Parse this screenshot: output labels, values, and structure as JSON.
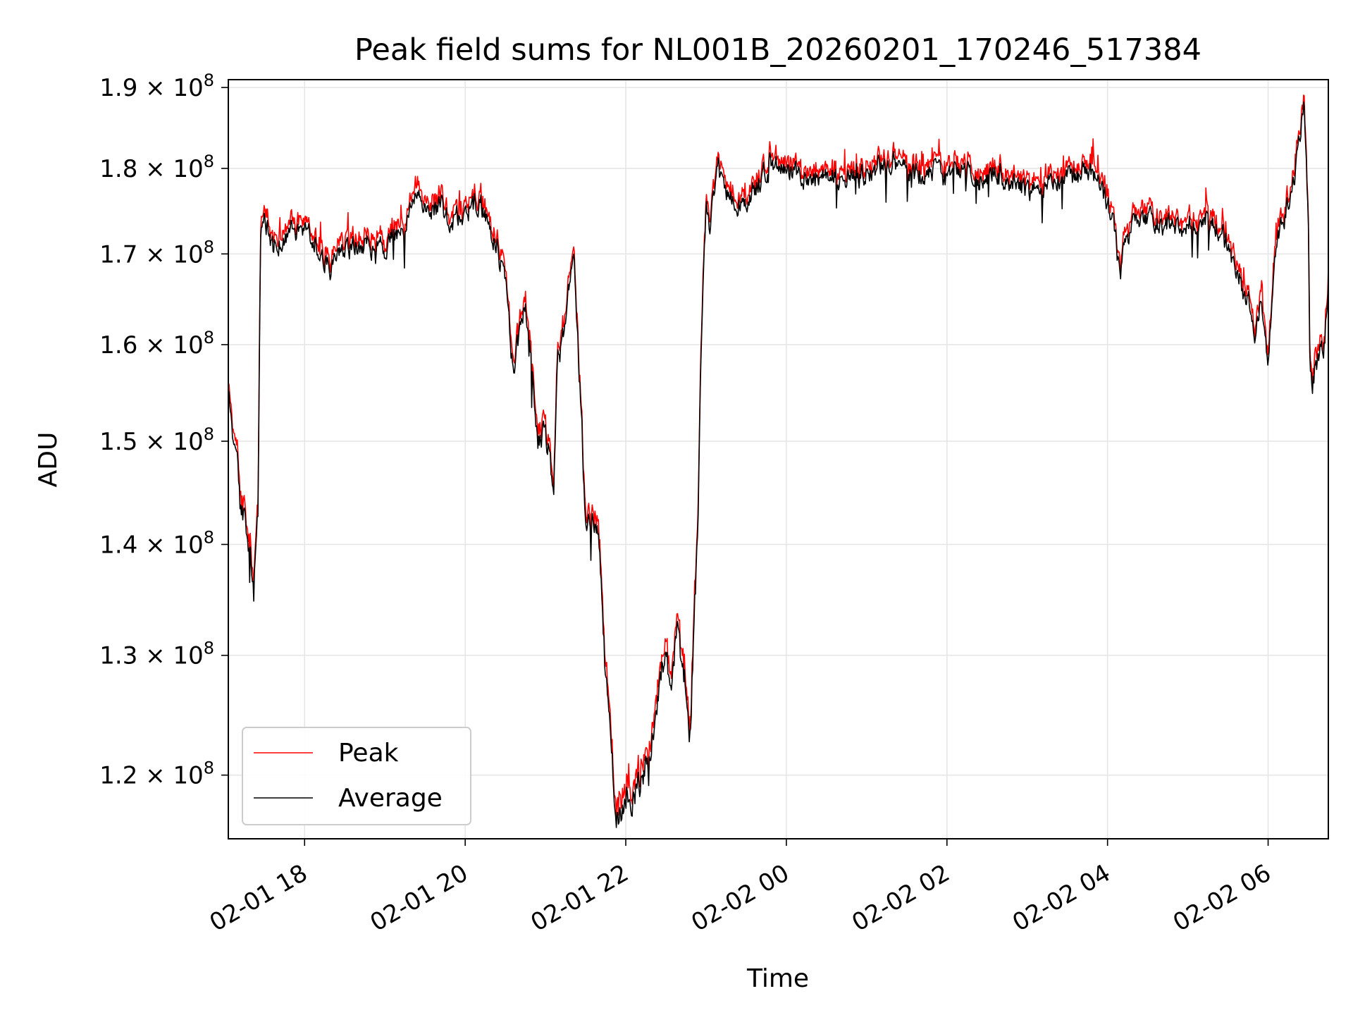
{
  "chart_data": {
    "type": "line",
    "title": "Peak field sums for NL001B_20260201_170246_517384",
    "xlabel": "Time",
    "ylabel": "ADU",
    "yscale": "log",
    "ylim": [
      115000000,
      191000000
    ],
    "xlim_hours_from_2026-02-01_00:00": [
      17.05,
      30.75
    ],
    "x_ticks": [
      {
        "hour": 18,
        "label": "02-01 18"
      },
      {
        "hour": 20,
        "label": "02-01 20"
      },
      {
        "hour": 22,
        "label": "02-01 22"
      },
      {
        "hour": 24,
        "label": "02-02 00"
      },
      {
        "hour": 26,
        "label": "02-02 02"
      },
      {
        "hour": 28,
        "label": "02-02 04"
      },
      {
        "hour": 30,
        "label": "02-02 06"
      }
    ],
    "y_ticks": [
      {
        "value": 120000000,
        "mantissa": "1.2",
        "exponent": "8"
      },
      {
        "value": 130000000,
        "mantissa": "1.3",
        "exponent": "8"
      },
      {
        "value": 140000000,
        "mantissa": "1.4",
        "exponent": "8"
      },
      {
        "value": 150000000,
        "mantissa": "1.5",
        "exponent": "8"
      },
      {
        "value": 160000000,
        "mantissa": "1.6",
        "exponent": "8"
      },
      {
        "value": 170000000,
        "mantissa": "1.7",
        "exponent": "8"
      },
      {
        "value": 180000000,
        "mantissa": "1.8",
        "exponent": "8"
      },
      {
        "value": 190000000,
        "mantissa": "1.9",
        "exponent": "8"
      }
    ],
    "grid": true,
    "legend_position": "lower-left",
    "series": [
      {
        "name": "Peak",
        "color": "#ff0000",
        "peak_offset_1e6": 0.6,
        "spike_amplitude_1e6": 1.8
      },
      {
        "name": "Average",
        "color": "#000000"
      }
    ],
    "average_trend": {
      "hours": [
        17.05,
        17.1,
        17.2,
        17.3,
        17.35,
        17.38,
        17.42,
        17.45,
        17.5,
        17.6,
        17.8,
        18.0,
        18.2,
        18.3,
        18.5,
        18.7,
        19.0,
        19.2,
        19.4,
        19.6,
        19.7,
        19.8,
        20.0,
        20.2,
        20.3,
        20.4,
        20.5,
        20.6,
        20.7,
        20.75,
        20.8,
        20.9,
        21.0,
        21.1,
        21.15,
        21.2,
        21.3,
        21.35,
        21.4,
        21.5,
        21.6,
        21.65,
        21.7,
        21.75,
        21.8,
        21.85,
        21.9,
        21.95,
        22.0,
        22.1,
        22.2,
        22.3,
        22.4,
        22.5,
        22.55,
        22.6,
        22.65,
        22.7,
        22.75,
        22.8,
        22.9,
        22.95,
        23.0,
        23.05,
        23.1,
        23.15,
        23.2,
        23.3,
        23.5,
        23.7,
        23.8,
        24.0,
        24.2,
        24.5,
        24.8,
        25.0,
        25.3,
        25.6,
        25.8,
        26.0,
        26.2,
        26.4,
        26.6,
        26.8,
        27.0,
        27.2,
        27.4,
        27.6,
        27.8,
        27.9,
        28.0,
        28.1,
        28.15,
        28.2,
        28.3,
        28.5,
        28.7,
        28.9,
        29.1,
        29.3,
        29.5,
        29.7,
        29.8,
        29.85,
        29.9,
        30.0,
        30.05,
        30.1,
        30.15,
        30.3,
        30.4,
        30.45,
        30.5,
        30.52,
        30.55,
        30.6,
        30.7,
        30.75
      ],
      "values_1e6": [
        156,
        150,
        145,
        140,
        137.5,
        138.5,
        143,
        172.5,
        174,
        171,
        172.5,
        173,
        171,
        168,
        170,
        171,
        170.5,
        173,
        176,
        175,
        175.5,
        173.5,
        175,
        176,
        173,
        171,
        166,
        157,
        162,
        164,
        160,
        149.5,
        151,
        145,
        158,
        159.5,
        167,
        171,
        161,
        142,
        143,
        141,
        136,
        128,
        124,
        119,
        116.5,
        117.5,
        119,
        118,
        120,
        121.5,
        127,
        131,
        126,
        130,
        134,
        130,
        127,
        123,
        142,
        163,
        175.5,
        173,
        177,
        180,
        178,
        176.5,
        175.5,
        179,
        181,
        180,
        179,
        179,
        178.5,
        179.5,
        181,
        179,
        180,
        178.5,
        180,
        178.5,
        180,
        178,
        177.5,
        178,
        179,
        179,
        180,
        178.5,
        175.5,
        172,
        167,
        170,
        173,
        174,
        173,
        173.5,
        173,
        174,
        171,
        166,
        163,
        161.5,
        165,
        158,
        166,
        171,
        173,
        177,
        184,
        188,
        173,
        157,
        156,
        158,
        160,
        167
      ]
    }
  }
}
